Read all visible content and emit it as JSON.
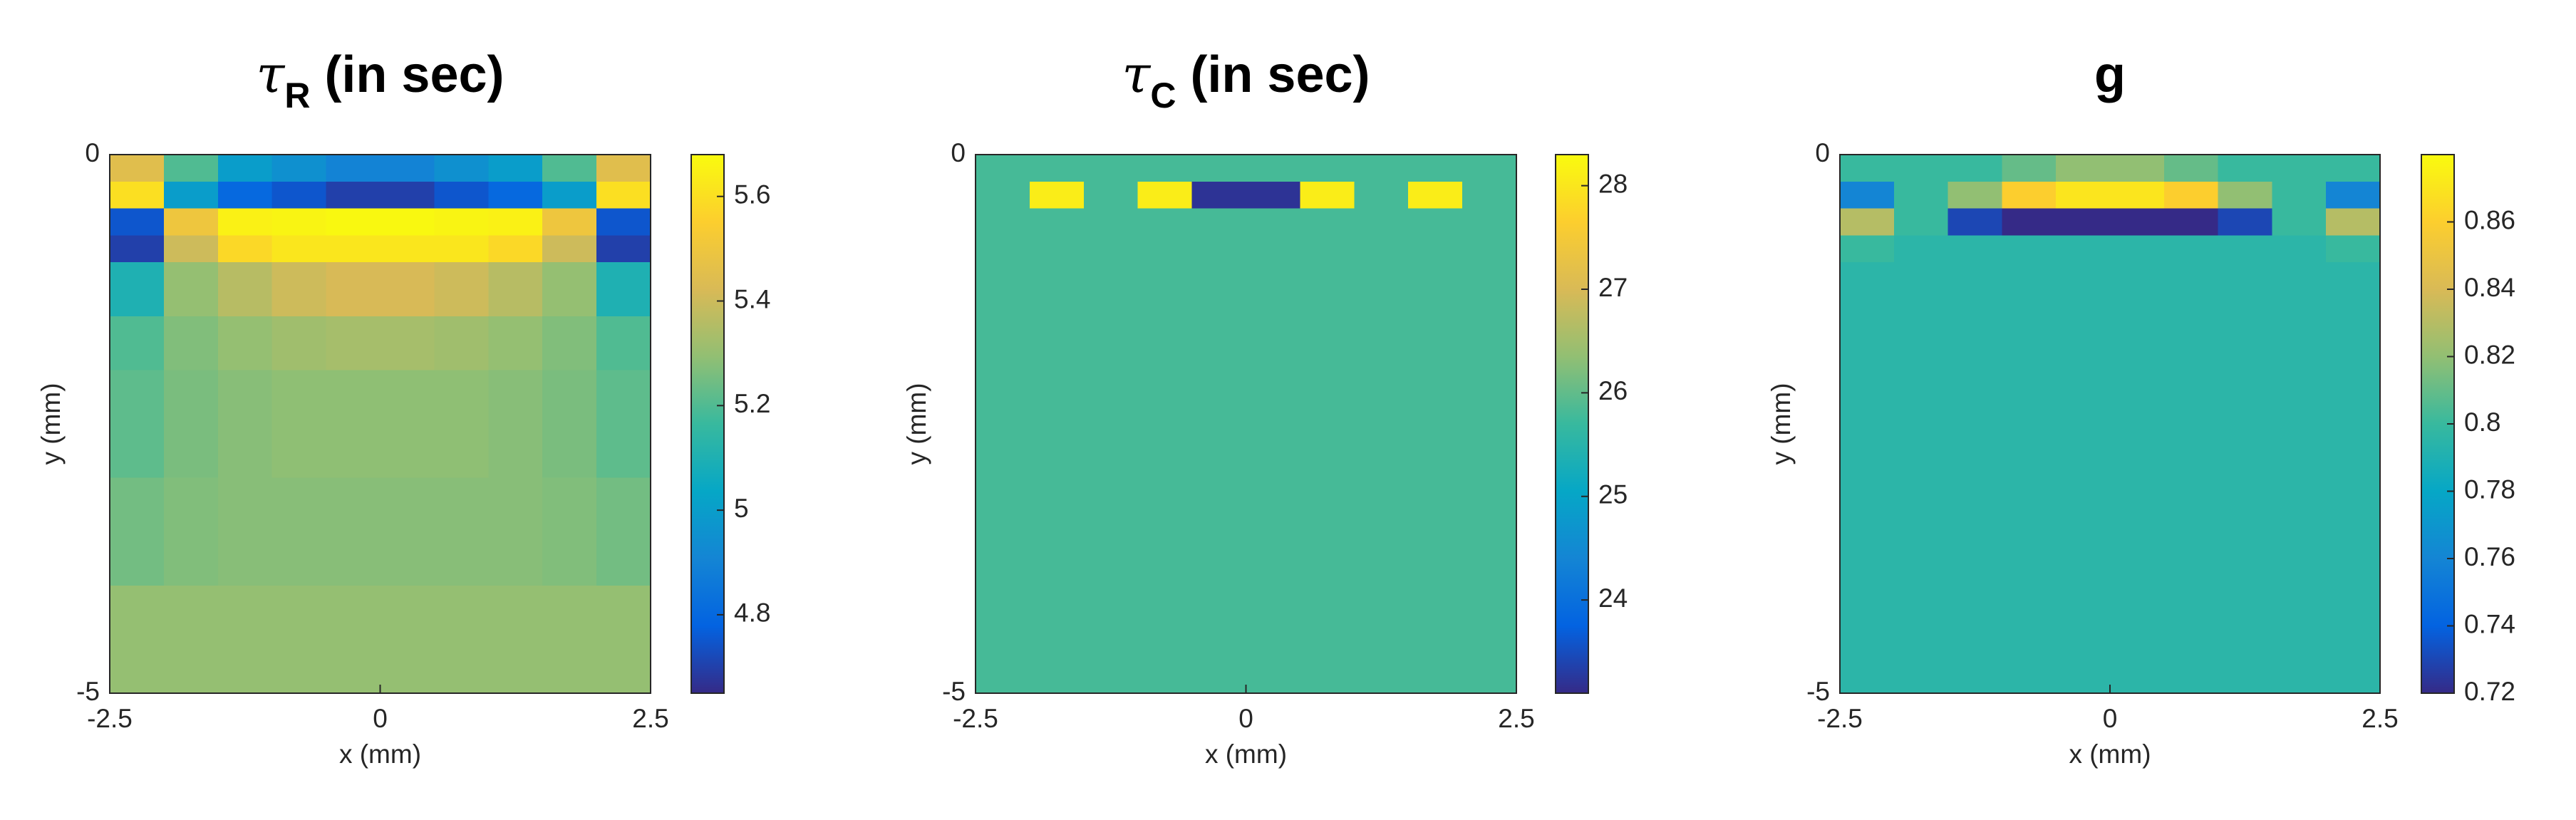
{
  "chart_data": [
    {
      "type": "heatmap",
      "title_symbol": "τ",
      "title_subscript": "R",
      "title_rest": "(in sec)",
      "x_label": "x (mm)",
      "y_label": "y (mm)",
      "xlim": [
        -2.5,
        2.5
      ],
      "xticks": [
        -2.5,
        0,
        2.5
      ],
      "ylim": [
        -5,
        0
      ],
      "yticks": [
        -5,
        0
      ],
      "xbins": [
        -2.5,
        -2,
        -1.5,
        -1,
        -0.5,
        0,
        0.5,
        1,
        1.5,
        2,
        2.5
      ],
      "ybins": [
        0,
        -0.25,
        -0.5,
        -0.75,
        -1,
        -1.5,
        -2,
        -3,
        -4,
        -5
      ],
      "z": [
        [
          5.45,
          5.2,
          5.0,
          4.95,
          4.9,
          4.9,
          4.95,
          5.0,
          5.2,
          5.45
        ],
        [
          5.6,
          5.0,
          4.8,
          4.75,
          4.7,
          4.7,
          4.75,
          4.8,
          5.0,
          5.6
        ],
        [
          4.75,
          5.5,
          5.65,
          5.66,
          5.67,
          5.67,
          5.66,
          5.65,
          5.5,
          4.75
        ],
        [
          4.7,
          5.4,
          5.58,
          5.62,
          5.62,
          5.62,
          5.62,
          5.58,
          5.4,
          4.7
        ],
        [
          5.1,
          5.3,
          5.36,
          5.4,
          5.42,
          5.42,
          5.4,
          5.36,
          5.3,
          5.1
        ],
        [
          5.2,
          5.27,
          5.3,
          5.32,
          5.33,
          5.33,
          5.32,
          5.3,
          5.27,
          5.2
        ],
        [
          5.22,
          5.26,
          5.28,
          5.29,
          5.29,
          5.29,
          5.29,
          5.28,
          5.26,
          5.22
        ],
        [
          5.25,
          5.27,
          5.28,
          5.28,
          5.28,
          5.28,
          5.28,
          5.28,
          5.27,
          5.25
        ],
        [
          5.3,
          5.3,
          5.3,
          5.3,
          5.3,
          5.3,
          5.3,
          5.3,
          5.3,
          5.3
        ]
      ],
      "clim": [
        4.65,
        5.68
      ],
      "cticks": [
        4.8,
        5,
        5.2,
        5.4,
        5.6
      ],
      "colormap": "parula"
    },
    {
      "type": "heatmap",
      "title_symbol": "τ",
      "title_subscript": "C",
      "title_rest": "(in sec)",
      "x_label": "x (mm)",
      "y_label": "y (mm)",
      "xlim": [
        -2.5,
        2.5
      ],
      "xticks": [
        -2.5,
        0,
        2.5
      ],
      "ylim": [
        -5,
        0
      ],
      "yticks": [
        -5,
        0
      ],
      "xbins": [
        -2.5,
        -2,
        -1.5,
        -1,
        -0.5,
        0,
        0.5,
        1,
        1.5,
        2,
        2.5
      ],
      "ybins": [
        0,
        -0.25,
        -0.5,
        -0.75,
        -1,
        -1.5,
        -2,
        -3,
        -4,
        -5
      ],
      "z": [
        [
          25.8,
          25.8,
          25.8,
          25.8,
          25.8,
          25.8,
          25.8,
          25.8,
          25.8,
          25.8
        ],
        [
          25.8,
          28.1,
          25.8,
          28.1,
          23.2,
          23.2,
          28.1,
          25.8,
          28.1,
          25.8
        ],
        [
          25.8,
          25.8,
          25.8,
          25.8,
          25.8,
          25.8,
          25.8,
          25.8,
          25.8,
          25.8
        ],
        [
          25.8,
          25.8,
          25.8,
          25.8,
          25.8,
          25.8,
          25.8,
          25.8,
          25.8,
          25.8
        ],
        [
          25.8,
          25.8,
          25.8,
          25.8,
          25.8,
          25.8,
          25.8,
          25.8,
          25.8,
          25.8
        ],
        [
          25.8,
          25.8,
          25.8,
          25.8,
          25.8,
          25.8,
          25.8,
          25.8,
          25.8,
          25.8
        ],
        [
          25.8,
          25.8,
          25.8,
          25.8,
          25.8,
          25.8,
          25.8,
          25.8,
          25.8,
          25.8
        ],
        [
          25.8,
          25.8,
          25.8,
          25.8,
          25.8,
          25.8,
          25.8,
          25.8,
          25.8,
          25.8
        ],
        [
          25.8,
          25.8,
          25.8,
          25.8,
          25.8,
          25.8,
          25.8,
          25.8,
          25.8,
          25.8
        ]
      ],
      "clim": [
        23.1,
        28.3
      ],
      "cticks": [
        24,
        25,
        26,
        27,
        28
      ],
      "colormap": "parula"
    },
    {
      "type": "heatmap",
      "title_rest": "g",
      "x_label": "x (mm)",
      "y_label": "y (mm)",
      "xlim": [
        -2.5,
        2.5
      ],
      "xticks": [
        -2.5,
        0,
        2.5
      ],
      "ylim": [
        -5,
        0
      ],
      "yticks": [
        -5,
        0
      ],
      "xbins": [
        -2.5,
        -2,
        -1.5,
        -1,
        -0.5,
        0,
        0.5,
        1,
        1.5,
        2,
        2.5
      ],
      "ybins": [
        0,
        -0.25,
        -0.5,
        -0.75,
        -1,
        -1.5,
        -2,
        -3,
        -4,
        -5
      ],
      "z": [
        [
          0.8,
          0.8,
          0.8,
          0.81,
          0.82,
          0.82,
          0.81,
          0.8,
          0.8,
          0.8
        ],
        [
          0.76,
          0.8,
          0.82,
          0.86,
          0.87,
          0.87,
          0.86,
          0.82,
          0.8,
          0.76
        ],
        [
          0.83,
          0.8,
          0.73,
          0.72,
          0.72,
          0.72,
          0.72,
          0.73,
          0.8,
          0.83
        ],
        [
          0.8,
          0.795,
          0.795,
          0.795,
          0.795,
          0.795,
          0.795,
          0.795,
          0.795,
          0.8
        ],
        [
          0.795,
          0.795,
          0.795,
          0.795,
          0.795,
          0.795,
          0.795,
          0.795,
          0.795,
          0.795
        ],
        [
          0.795,
          0.795,
          0.795,
          0.795,
          0.795,
          0.795,
          0.795,
          0.795,
          0.795,
          0.795
        ],
        [
          0.795,
          0.795,
          0.795,
          0.795,
          0.795,
          0.795,
          0.795,
          0.795,
          0.795,
          0.795
        ],
        [
          0.795,
          0.795,
          0.795,
          0.795,
          0.795,
          0.795,
          0.795,
          0.795,
          0.795,
          0.795
        ],
        [
          0.795,
          0.795,
          0.795,
          0.795,
          0.795,
          0.795,
          0.795,
          0.795,
          0.795,
          0.795
        ]
      ],
      "clim": [
        0.72,
        0.88
      ],
      "cticks": [
        0.72,
        0.74,
        0.76,
        0.78,
        0.8,
        0.82,
        0.84,
        0.86
      ],
      "colormap": "parula"
    }
  ]
}
